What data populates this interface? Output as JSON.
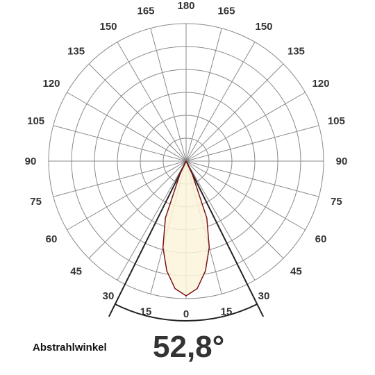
{
  "chart_data": {
    "type": "polar",
    "title": "",
    "angle_labels": [
      {
        "angle": 0,
        "text": "0"
      },
      {
        "angle": 15,
        "text": "15"
      },
      {
        "angle": -15,
        "text": "15"
      },
      {
        "angle": 30,
        "text": "30"
      },
      {
        "angle": -30,
        "text": "30"
      },
      {
        "angle": 45,
        "text": "45"
      },
      {
        "angle": -45,
        "text": "45"
      },
      {
        "angle": 60,
        "text": "60"
      },
      {
        "angle": -60,
        "text": "60"
      },
      {
        "angle": 75,
        "text": "75"
      },
      {
        "angle": -75,
        "text": "75"
      },
      {
        "angle": 90,
        "text": "90"
      },
      {
        "angle": -90,
        "text": "90"
      },
      {
        "angle": 105,
        "text": "105"
      },
      {
        "angle": -105,
        "text": "105"
      },
      {
        "angle": 120,
        "text": "120"
      },
      {
        "angle": -120,
        "text": "120"
      },
      {
        "angle": 135,
        "text": "135"
      },
      {
        "angle": -135,
        "text": "135"
      },
      {
        "angle": 150,
        "text": "150"
      },
      {
        "angle": -150,
        "text": "150"
      },
      {
        "angle": 165,
        "text": "165"
      },
      {
        "angle": -165,
        "text": "165"
      },
      {
        "angle": 180,
        "text": "180"
      }
    ],
    "radial_rings": 6,
    "angular_grid_step_deg": 15,
    "grid": true,
    "beam_angle_deg": 52.8,
    "series": [
      {
        "angles": [
          -28,
          -25,
          -20,
          -15,
          -10,
          -5,
          0,
          5,
          10,
          15,
          20,
          25,
          28
        ],
        "values": [
          0.0,
          0.11,
          0.44,
          0.65,
          0.81,
          0.93,
          0.98,
          0.93,
          0.81,
          0.65,
          0.44,
          0.11,
          0.0
        ]
      }
    ],
    "colors": {
      "fill": "#fbf4dc",
      "outline": "#7a1216",
      "grid": "#8a8a8a",
      "beam_lines": "#222222"
    }
  },
  "footer": {
    "label": "Abstrahlwinkel",
    "value": "52,8°"
  }
}
